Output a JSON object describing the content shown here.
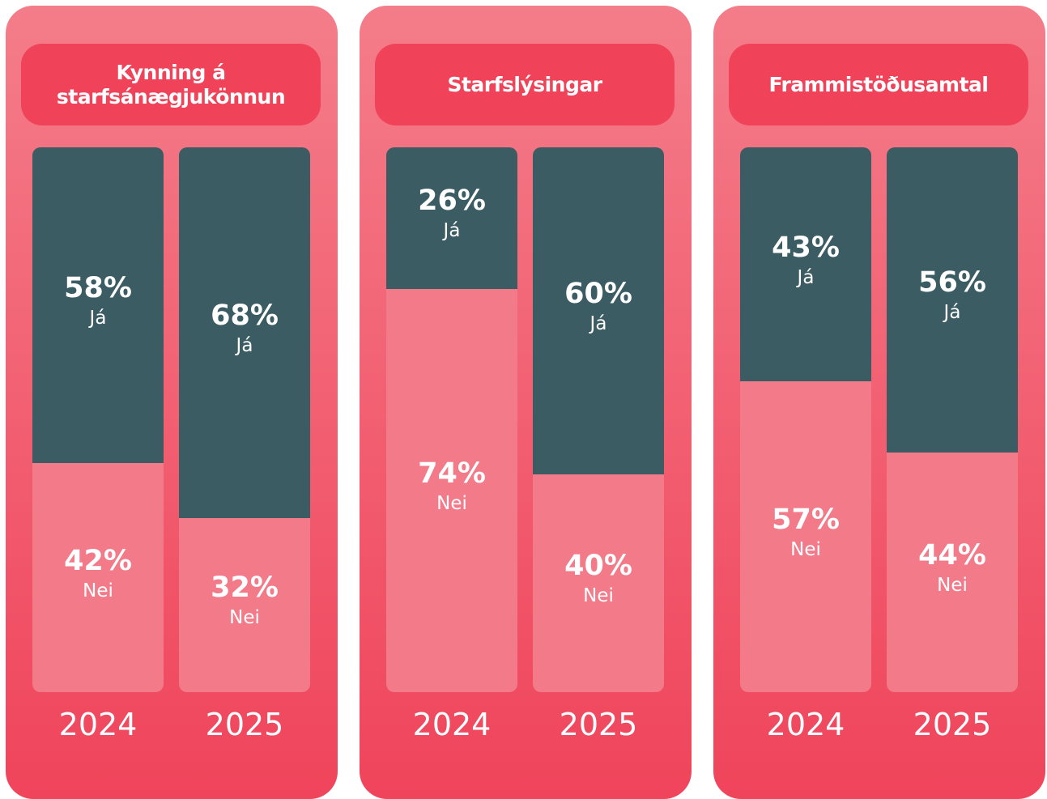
{
  "chart_data": [
    {
      "type": "bar",
      "stacked": true,
      "title": "Kynning á starfsánægjukönnun",
      "categories": [
        "2024",
        "2025"
      ],
      "series": [
        {
          "name": "Já",
          "color": "#3b5c63",
          "values": [
            58,
            68
          ],
          "value_labels": [
            "58%",
            "68%"
          ]
        },
        {
          "name": "Nei",
          "color": "#f27a89",
          "values": [
            42,
            32
          ],
          "value_labels": [
            "42%",
            "32%"
          ]
        }
      ]
    },
    {
      "type": "bar",
      "stacked": true,
      "title": "Starfslýsingar",
      "categories": [
        "2024",
        "2025"
      ],
      "series": [
        {
          "name": "Já",
          "color": "#3b5c63",
          "values": [
            26,
            60
          ],
          "value_labels": [
            "26%",
            "60%"
          ]
        },
        {
          "name": "Nei",
          "color": "#f27a89",
          "values": [
            74,
            40
          ],
          "value_labels": [
            "74%",
            "40%"
          ]
        }
      ]
    },
    {
      "type": "bar",
      "stacked": true,
      "title": "Frammistöðusamtal",
      "categories": [
        "2024",
        "2025"
      ],
      "series": [
        {
          "name": "Já",
          "color": "#3b5c63",
          "values": [
            43,
            56
          ],
          "value_labels": [
            "43%",
            "56%"
          ]
        },
        {
          "name": "Nei",
          "color": "#f27a89",
          "values": [
            57,
            44
          ],
          "value_labels": [
            "57%",
            "44%"
          ]
        }
      ]
    }
  ]
}
